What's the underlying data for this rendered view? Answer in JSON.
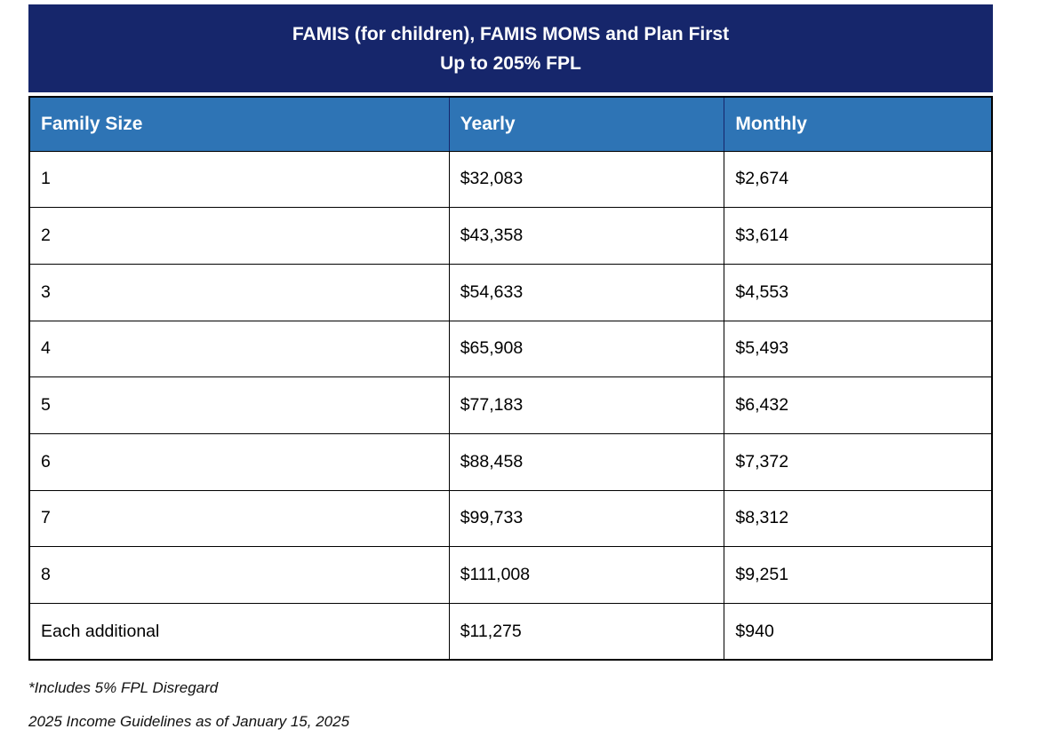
{
  "title": {
    "line1": "FAMIS (for children), FAMIS MOMS and Plan First",
    "line2": "Up to 205% FPL"
  },
  "table": {
    "columns": [
      "Family Size",
      "Yearly",
      "Monthly"
    ],
    "rows": [
      {
        "family_size": "1",
        "yearly": "$32,083",
        "monthly": "$2,674"
      },
      {
        "family_size": "2",
        "yearly": "$43,358",
        "monthly": "$3,614"
      },
      {
        "family_size": "3",
        "yearly": "$54,633",
        "monthly": "$4,553"
      },
      {
        "family_size": "4",
        "yearly": "$65,908",
        "monthly": "$5,493"
      },
      {
        "family_size": "5",
        "yearly": "$77,183",
        "monthly": "$6,432"
      },
      {
        "family_size": "6",
        "yearly": "$88,458",
        "monthly": "$7,372"
      },
      {
        "family_size": "7",
        "yearly": "$99,733",
        "monthly": "$8,312"
      },
      {
        "family_size": "8",
        "yearly": "$111,008",
        "monthly": "$9,251"
      },
      {
        "family_size": "Each additional",
        "yearly": "$11,275",
        "monthly": "$940"
      }
    ]
  },
  "footnotes": [
    "*Includes 5% FPL Disregard",
    "2025 Income Guidelines as of January 15, 2025"
  ],
  "colors": {
    "title_bg": "#16266B",
    "header_bg": "#2E74B5",
    "header_text": "#FFFFFF",
    "border": "#000000"
  }
}
